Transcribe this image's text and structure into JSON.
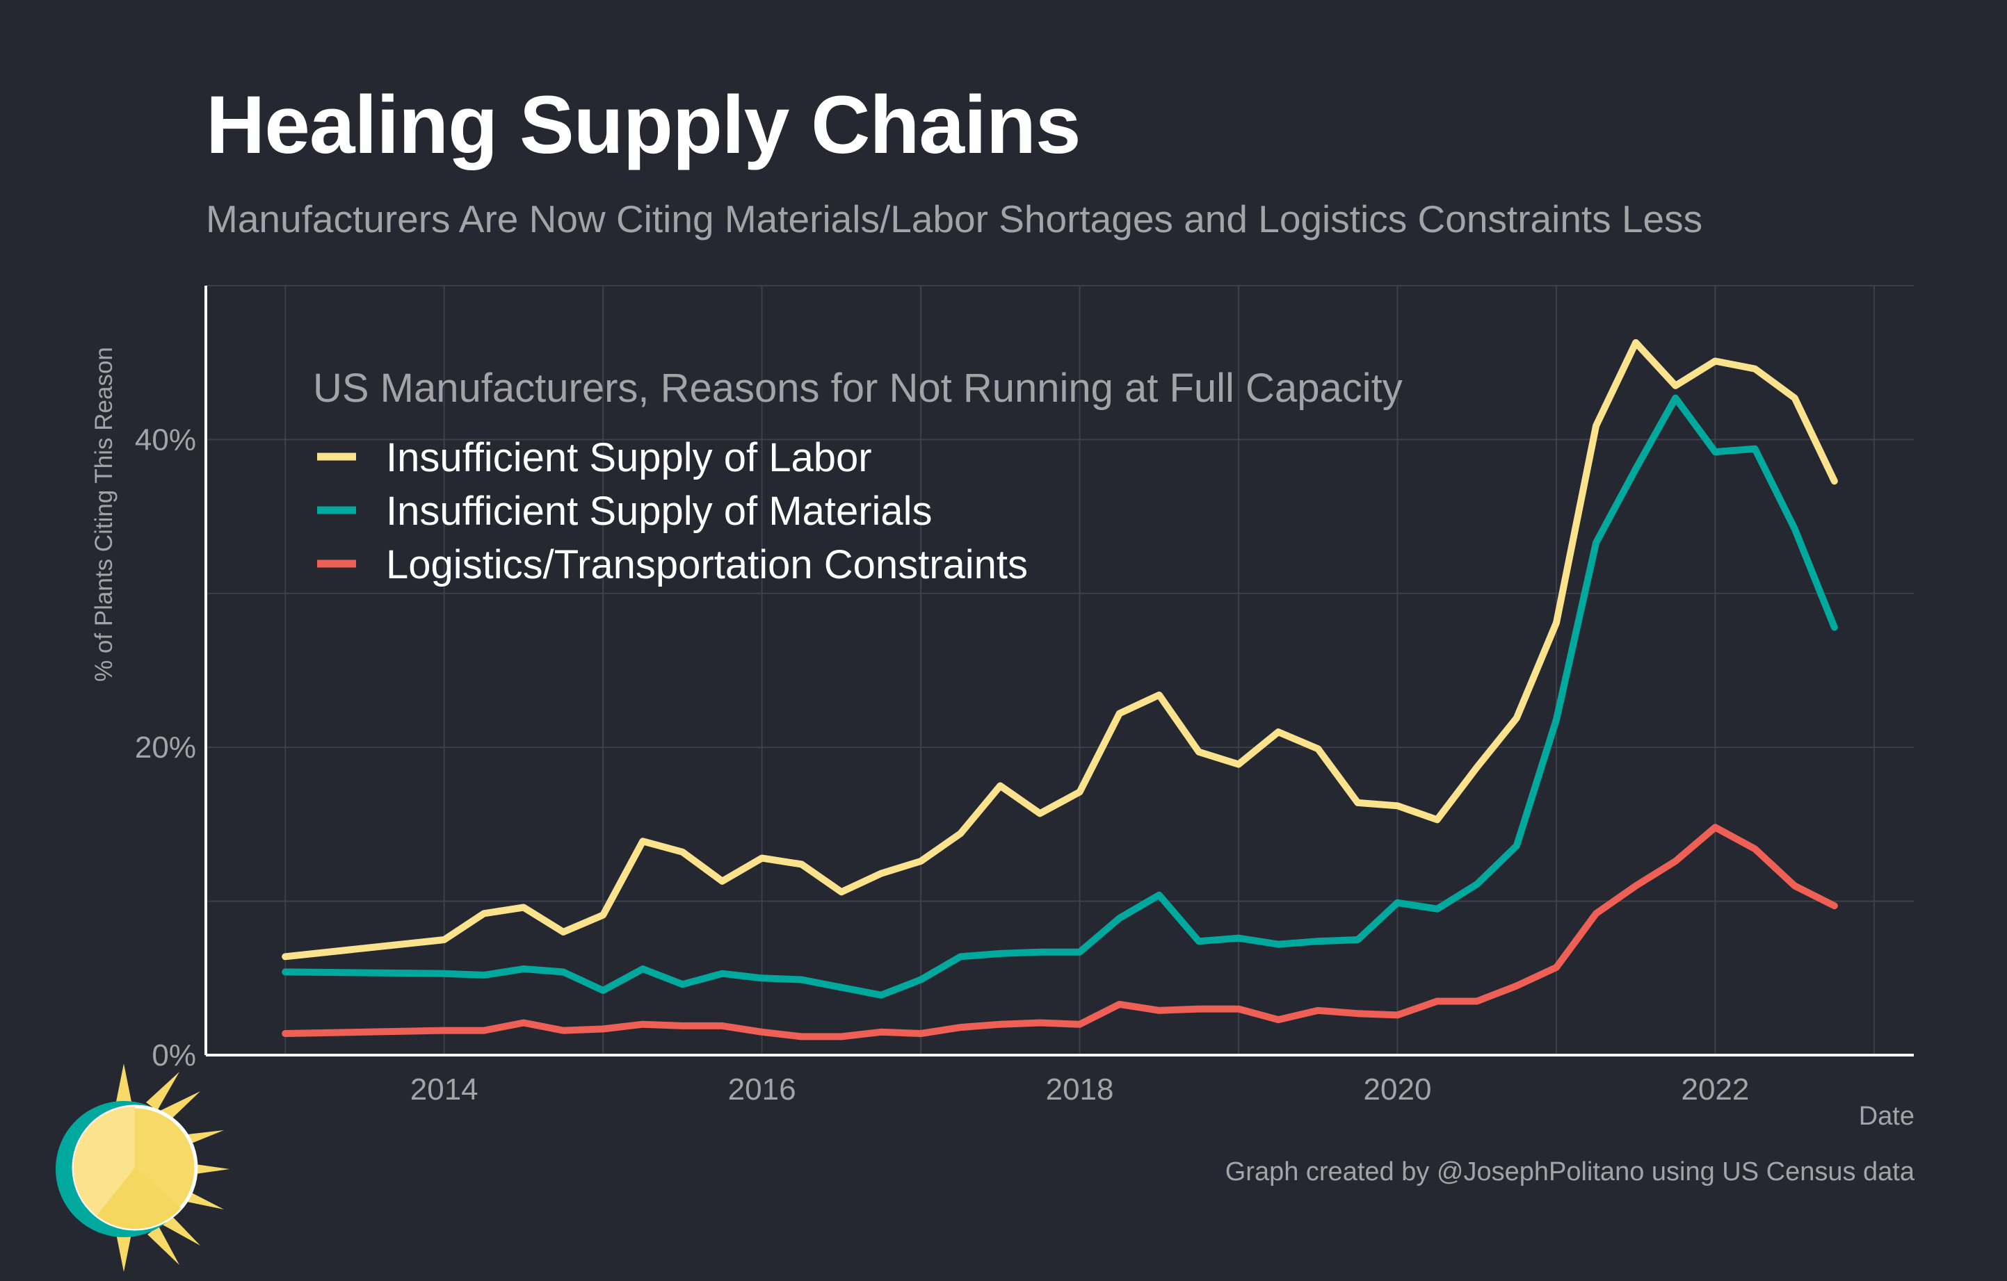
{
  "header": {
    "title": "Healing Supply Chains",
    "subtitle": "Manufacturers Are Now Citing Materials/Labor Shortages and Logistics Constraints Less"
  },
  "footer": {
    "credit": "Graph created by @JosephPolitano using US Census data"
  },
  "colors": {
    "background": "#252830",
    "labor": "#FBE38E",
    "materials": "#00A99D",
    "logistics": "#EE6055",
    "grid": "#3d4049",
    "axis_text": "#a3a3a8"
  },
  "chart_data": {
    "type": "line",
    "title": "Healing Supply Chains",
    "subtitle": "Manufacturers Are Now Citing Materials/Labor Shortages and Logistics Constraints Less",
    "xlabel": "Date",
    "ylabel": "% of Plants Citing This Reason",
    "legend_title": "US Manufacturers, Reasons for Not Running at Full Capacity",
    "legend_position": "top-left",
    "xlim": [
      2012.5,
      2023.25
    ],
    "ylim": [
      0,
      50
    ],
    "x_ticks": [
      2014,
      2016,
      2018,
      2020,
      2022
    ],
    "y_ticks": [
      0,
      20,
      40
    ],
    "y_tick_labels": [
      "0%",
      "20%",
      "40%"
    ],
    "grid": true,
    "x": [
      2013.0,
      2014.0,
      2014.25,
      2014.5,
      2014.75,
      2015.0,
      2015.25,
      2015.5,
      2015.75,
      2016.0,
      2016.25,
      2016.5,
      2016.75,
      2017.0,
      2017.25,
      2017.5,
      2017.75,
      2018.0,
      2018.25,
      2018.5,
      2018.75,
      2019.0,
      2019.25,
      2019.5,
      2019.75,
      2020.0,
      2020.25,
      2020.5,
      2020.75,
      2021.0,
      2021.25,
      2021.5,
      2021.75,
      2022.0,
      2022.25,
      2022.5,
      2022.75
    ],
    "series": [
      {
        "name": "Insufficient Supply of Labor",
        "color": "#FBE38E",
        "values": [
          6.4,
          7.5,
          9.2,
          9.6,
          8.0,
          9.1,
          13.9,
          13.2,
          11.3,
          12.8,
          12.4,
          10.6,
          11.8,
          12.6,
          14.4,
          17.5,
          15.7,
          17.1,
          22.2,
          23.4,
          19.7,
          18.9,
          21.0,
          19.9,
          16.4,
          16.2,
          15.3,
          18.7,
          21.9,
          28.1,
          40.9,
          46.3,
          43.5,
          45.1,
          44.6,
          42.7,
          37.3
        ]
      },
      {
        "name": "Insufficient Supply of Materials",
        "color": "#00A99D",
        "values": [
          5.4,
          5.3,
          5.2,
          5.6,
          5.4,
          4.2,
          5.6,
          4.6,
          5.3,
          5.0,
          4.9,
          4.4,
          3.9,
          4.9,
          6.4,
          6.6,
          6.7,
          6.7,
          8.9,
          10.4,
          7.4,
          7.6,
          7.2,
          7.4,
          7.5,
          9.9,
          9.5,
          11.1,
          13.6,
          21.8,
          33.3,
          38.1,
          42.7,
          39.2,
          39.4,
          34.2,
          27.8
        ]
      },
      {
        "name": "Logistics/Transportation Constraints",
        "color": "#EE6055",
        "values": [
          1.4,
          1.6,
          1.6,
          2.1,
          1.6,
          1.7,
          2.0,
          1.9,
          1.9,
          1.5,
          1.2,
          1.2,
          1.5,
          1.4,
          1.8,
          2.0,
          2.1,
          2.0,
          3.3,
          2.9,
          3.0,
          3.0,
          2.3,
          2.9,
          2.7,
          2.6,
          3.5,
          3.5,
          4.5,
          5.7,
          9.2,
          11.0,
          12.6,
          14.8,
          13.4,
          11.0,
          9.7
        ]
      }
    ]
  }
}
